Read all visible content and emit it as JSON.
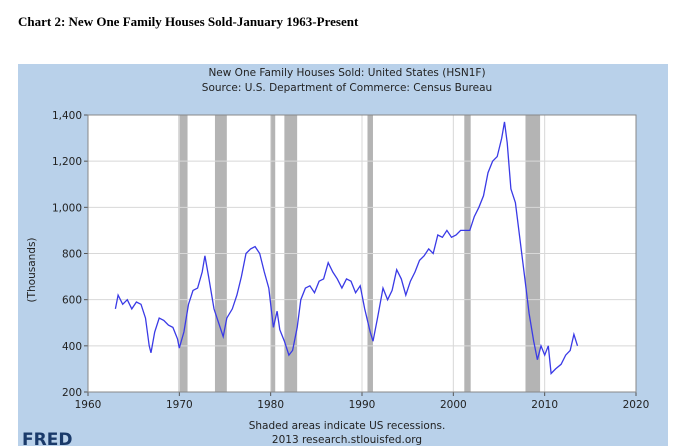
{
  "header": {
    "title": "Chart 2: New One Family Houses Sold-January 1963-Present"
  },
  "chart_data": {
    "type": "line",
    "title": "New One Family Houses Sold: United States (HSN1F)",
    "subtitle": "Source: U.S. Department of Commerce: Census Bureau",
    "y_label": "(Thousands)",
    "note": "Shaded areas indicate US recessions.",
    "credit": "2013 research.stlouisfed.org",
    "logo": "FRED",
    "xlim": [
      1960,
      2020
    ],
    "xticks": [
      1960,
      1970,
      1980,
      1990,
      2000,
      2010,
      2020
    ],
    "ylim": [
      200,
      1400
    ],
    "yticks": [
      200,
      400,
      600,
      800,
      {
        "value": 1000,
        "label": "1,000"
      },
      {
        "value": 1200,
        "label": "1,200"
      },
      {
        "value": 1400,
        "label": "1,400"
      }
    ],
    "grid": true,
    "recession_color": "#b4b4b4",
    "recessions": [
      [
        1969.9,
        1970.9
      ],
      [
        1973.9,
        1975.2
      ],
      [
        1980.0,
        1980.5
      ],
      [
        1981.5,
        1982.9
      ],
      [
        1990.6,
        1991.2
      ],
      [
        2001.2,
        2001.9
      ],
      [
        2007.9,
        2009.5
      ]
    ],
    "series": [
      {
        "name": "New One Family Houses Sold",
        "color": "#3a3ae6",
        "x": [
          1963.0,
          1963.3,
          1963.8,
          1964.3,
          1964.8,
          1965.3,
          1965.8,
          1966.3,
          1966.7,
          1966.9,
          1967.3,
          1967.8,
          1968.3,
          1968.8,
          1969.3,
          1969.8,
          1970.0,
          1970.5,
          1971.0,
          1971.5,
          1972.0,
          1972.5,
          1972.8,
          1973.2,
          1973.8,
          1974.3,
          1974.8,
          1975.2,
          1975.8,
          1976.3,
          1976.8,
          1977.3,
          1977.8,
          1978.3,
          1978.8,
          1979.3,
          1979.8,
          1980.3,
          1980.7,
          1981.0,
          1981.5,
          1982.0,
          1982.4,
          1982.9,
          1983.3,
          1983.8,
          1984.3,
          1984.8,
          1985.3,
          1985.8,
          1986.3,
          1986.8,
          1987.3,
          1987.8,
          1988.3,
          1988.8,
          1989.3,
          1989.8,
          1990.3,
          1990.9,
          1991.2,
          1991.7,
          1992.3,
          1992.8,
          1993.3,
          1993.8,
          1994.3,
          1994.8,
          1995.3,
          1995.8,
          1996.3,
          1996.8,
          1997.3,
          1997.8,
          1998.3,
          1998.8,
          1999.3,
          1999.8,
          2000.3,
          2000.8,
          2001.3,
          2001.8,
          2002.3,
          2002.8,
          2003.3,
          2003.8,
          2004.3,
          2004.8,
          2005.3,
          2005.6,
          2005.9,
          2006.3,
          2006.8,
          2007.3,
          2007.8,
          2008.3,
          2008.8,
          2009.2,
          2009.6,
          2010.0,
          2010.4,
          2010.7,
          2011.2,
          2011.8,
          2012.3,
          2012.8,
          2013.2,
          2013.6
        ],
        "values": [
          560,
          620,
          580,
          600,
          560,
          590,
          580,
          520,
          400,
          370,
          460,
          520,
          510,
          490,
          480,
          430,
          390,
          460,
          580,
          640,
          650,
          720,
          790,
          700,
          560,
          500,
          440,
          520,
          560,
          620,
          700,
          800,
          820,
          830,
          800,
          720,
          650,
          480,
          550,
          470,
          420,
          360,
          380,
          480,
          600,
          650,
          660,
          630,
          680,
          690,
          760,
          720,
          690,
          650,
          690,
          680,
          630,
          660,
          560,
          460,
          420,
          520,
          650,
          600,
          640,
          730,
          690,
          620,
          680,
          720,
          770,
          790,
          820,
          800,
          880,
          870,
          900,
          870,
          880,
          900,
          900,
          900,
          960,
          1000,
          1050,
          1150,
          1200,
          1220,
          1300,
          1370,
          1280,
          1080,
          1020,
          860,
          700,
          540,
          420,
          340,
          400,
          360,
          400,
          280,
          300,
          320,
          360,
          380,
          450,
          400
        ]
      }
    ]
  }
}
